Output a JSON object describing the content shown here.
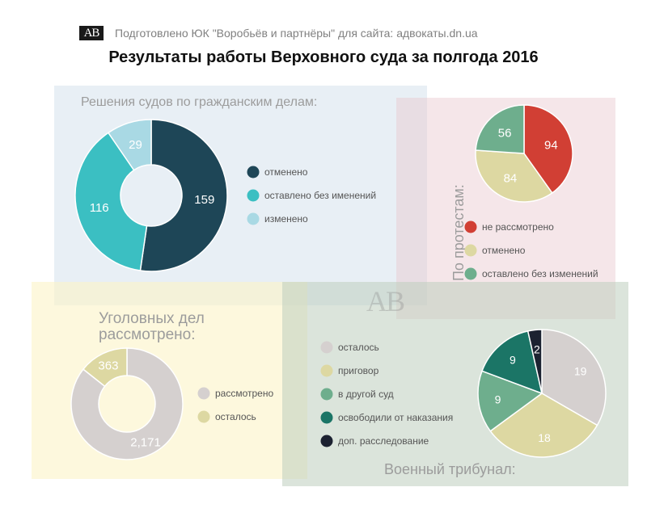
{
  "header": {
    "logo": "AB",
    "credit": "Подготовлено ЮК \"Воробьёв и партнёры\" для сайта: адвокаты.dn.ua",
    "title": "Результаты работы Верховного суда за полгода 2016"
  },
  "watermark": "AB",
  "chart_data": [
    {
      "id": "civil",
      "type": "pie",
      "donut": true,
      "title": "Решения судов по гражданским делам:",
      "categories": [
        "отменено",
        "оставлено без именений",
        "изменено"
      ],
      "values": [
        159,
        116,
        29
      ],
      "colors": [
        "#1e4657",
        "#3bbfc2",
        "#a9d9e4"
      ],
      "legend": "right"
    },
    {
      "id": "protest",
      "type": "pie",
      "donut": false,
      "title": "По протестам:",
      "categories": [
        "не рассмотрено",
        "отменено",
        "оставлено без изменений"
      ],
      "values": [
        94,
        84,
        56
      ],
      "colors": [
        "#d13f34",
        "#ddd8a2",
        "#6eae8d"
      ],
      "legend": "bottom"
    },
    {
      "id": "criminal",
      "type": "pie",
      "donut": true,
      "title": "Уголовных дел рассмотрено:",
      "categories": [
        "рассмотрено",
        "осталось"
      ],
      "values": [
        2171,
        363
      ],
      "value_labels": [
        "2,171",
        "363"
      ],
      "colors": [
        "#d5d0cf",
        "#ddd8a2"
      ],
      "legend": "right"
    },
    {
      "id": "military",
      "type": "pie",
      "donut": false,
      "title": "Военный трибунал:",
      "categories": [
        "осталось",
        "приговор",
        "в другой суд",
        "освободили от наказания",
        "доп. расследование"
      ],
      "values": [
        19,
        18,
        9,
        9,
        2
      ],
      "colors": [
        "#d5d0cf",
        "#ddd8a2",
        "#6eae8d",
        "#1b7566",
        "#1c2231"
      ],
      "legend": "left"
    }
  ]
}
